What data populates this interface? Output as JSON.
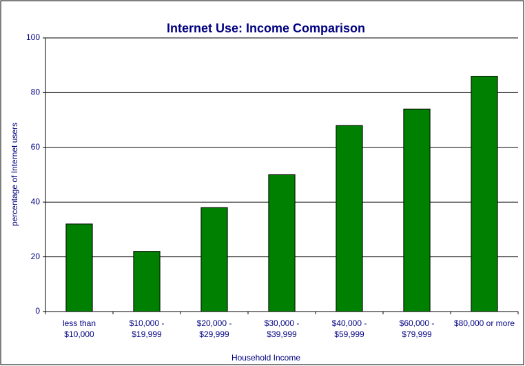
{
  "chart_data": {
    "type": "bar",
    "title": "Internet Use:  Income Comparison",
    "x_label": "Household Income",
    "y_label": "percentage of Internet users",
    "categories": [
      [
        "less than",
        "$10,000"
      ],
      [
        "$10,000 -",
        "$19,999"
      ],
      [
        "$20,000 -",
        "$29,999"
      ],
      [
        "$30,000 -",
        "$39,999"
      ],
      [
        "$40,000 -",
        "$59,999"
      ],
      [
        "$60,000 -",
        "$79,999"
      ],
      [
        "$80,000 or more"
      ]
    ],
    "values": [
      32,
      22,
      38,
      50,
      68,
      74,
      86
    ],
    "color": "#008000",
    "ylim": [
      0,
      100
    ],
    "yticks": [
      0,
      20,
      40,
      60,
      80,
      100
    ],
    "grid": true
  }
}
